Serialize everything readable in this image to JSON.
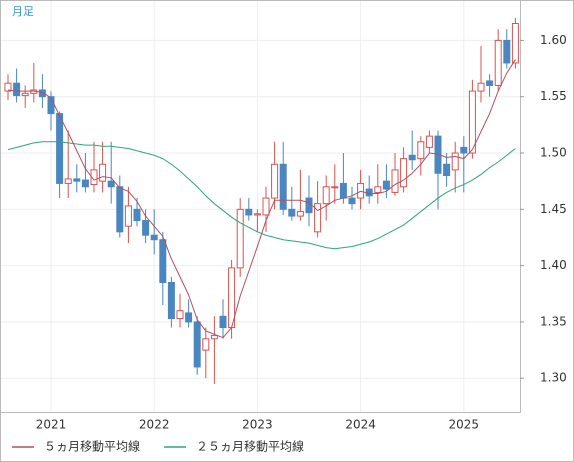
{
  "chart_data": {
    "type": "candlestick",
    "label": "月足",
    "categories": [
      null,
      null,
      null,
      null,
      null,
      "2021",
      null,
      null,
      null,
      null,
      null,
      null,
      null,
      null,
      null,
      null,
      null,
      "2022",
      null,
      null,
      null,
      null,
      null,
      null,
      null,
      null,
      null,
      null,
      null,
      "2023",
      null,
      null,
      null,
      null,
      null,
      null,
      null,
      null,
      null,
      null,
      null,
      "2024",
      null,
      null,
      null,
      null,
      null,
      null,
      null,
      null,
      null,
      null,
      null,
      "2025",
      null,
      null,
      null,
      null,
      null,
      null
    ],
    "open": [
      1.555,
      1.562,
      1.551,
      1.553,
      1.556,
      1.55,
      1.535,
      1.473,
      1.477,
      1.476,
      1.472,
      1.475,
      1.475,
      1.47,
      1.435,
      1.45,
      1.44,
      1.427,
      1.423,
      1.385,
      1.353,
      1.358,
      1.35,
      1.325,
      1.335,
      1.355,
      1.345,
      1.398,
      1.45,
      1.445,
      1.445,
      1.46,
      1.49,
      1.45,
      1.444,
      1.46,
      1.43,
      1.455,
      1.47,
      1.473,
      1.46,
      1.46,
      1.468,
      1.465,
      1.475,
      1.465,
      1.47,
      1.498,
      1.495,
      1.505,
      1.515,
      1.49,
      1.485,
      1.505,
      1.5,
      1.555,
      1.564,
      1.56,
      1.6,
      1.58
    ],
    "high": [
      1.57,
      1.575,
      1.56,
      1.58,
      1.57,
      1.555,
      1.537,
      1.52,
      1.49,
      1.5,
      1.51,
      1.51,
      1.51,
      1.48,
      1.47,
      1.46,
      1.45,
      1.45,
      1.43,
      1.39,
      1.375,
      1.37,
      1.355,
      1.345,
      1.355,
      1.37,
      1.405,
      1.46,
      1.46,
      1.45,
      1.47,
      1.51,
      1.51,
      1.47,
      1.485,
      1.48,
      1.475,
      1.48,
      1.49,
      1.5,
      1.47,
      1.485,
      1.48,
      1.49,
      1.49,
      1.5,
      1.505,
      1.52,
      1.515,
      1.52,
      1.52,
      1.5,
      1.51,
      1.515,
      1.565,
      1.595,
      1.57,
      1.61,
      1.61,
      1.62
    ],
    "low": [
      1.547,
      1.545,
      1.54,
      1.545,
      1.54,
      1.52,
      1.46,
      1.46,
      1.465,
      1.465,
      1.465,
      1.465,
      1.455,
      1.425,
      1.42,
      1.435,
      1.42,
      1.41,
      1.365,
      1.345,
      1.345,
      1.345,
      1.303,
      1.3,
      1.295,
      1.335,
      1.335,
      1.39,
      1.44,
      1.43,
      1.43,
      1.45,
      1.445,
      1.44,
      1.44,
      1.435,
      1.425,
      1.44,
      1.455,
      1.455,
      1.45,
      1.45,
      1.455,
      1.455,
      1.46,
      1.462,
      1.465,
      1.485,
      1.48,
      1.5,
      1.45,
      1.47,
      1.465,
      1.465,
      1.495,
      1.545,
      1.55,
      1.555,
      1.575,
      1.575
    ],
    "close": [
      1.562,
      1.551,
      1.553,
      1.556,
      1.55,
      1.535,
      1.473,
      1.477,
      1.475,
      1.47,
      1.485,
      1.49,
      1.47,
      1.43,
      1.453,
      1.44,
      1.427,
      1.423,
      1.385,
      1.353,
      1.36,
      1.35,
      1.31,
      1.335,
      1.338,
      1.345,
      1.398,
      1.45,
      1.445,
      1.446,
      1.46,
      1.49,
      1.45,
      1.444,
      1.448,
      1.447,
      1.455,
      1.47,
      1.47,
      1.46,
      1.455,
      1.473,
      1.462,
      1.47,
      1.468,
      1.485,
      1.495,
      1.494,
      1.51,
      1.515,
      1.482,
      1.48,
      1.5,
      1.5,
      1.555,
      1.562,
      1.56,
      1.6,
      1.58,
      1.615
    ],
    "up_color": "#d9534f",
    "down_color": "#4a86c0",
    "series": [
      {
        "name": "５ヵ月移動平均線",
        "color": "#b05060",
        "values": [
          1.556,
          1.555,
          1.555,
          1.555,
          1.554,
          1.549,
          1.533,
          1.518,
          1.502,
          1.486,
          1.476,
          1.479,
          1.478,
          1.469,
          1.466,
          1.457,
          1.444,
          1.435,
          1.426,
          1.406,
          1.39,
          1.374,
          1.352,
          1.342,
          1.339,
          1.336,
          1.345,
          1.373,
          1.395,
          1.417,
          1.44,
          1.458,
          1.458,
          1.458,
          1.458,
          1.456,
          1.449,
          1.453,
          1.458,
          1.46,
          1.462,
          1.466,
          1.464,
          1.464,
          1.466,
          1.472,
          1.476,
          1.482,
          1.49,
          1.5,
          1.499,
          1.496,
          1.497,
          1.495,
          1.503,
          1.519,
          1.535,
          1.555,
          1.571,
          1.583
        ]
      },
      {
        "name": "２５ヵ月移動平均線",
        "color": "#2aa878",
        "values": [
          1.503,
          1.505,
          1.507,
          1.509,
          1.51,
          1.51,
          1.51,
          1.509,
          1.508,
          1.507,
          1.507,
          1.506,
          1.506,
          1.505,
          1.504,
          1.502,
          1.5,
          1.498,
          1.495,
          1.49,
          1.484,
          1.477,
          1.47,
          1.462,
          1.455,
          1.449,
          1.443,
          1.438,
          1.434,
          1.43,
          1.427,
          1.425,
          1.423,
          1.422,
          1.421,
          1.42,
          1.418,
          1.416,
          1.415,
          1.416,
          1.417,
          1.419,
          1.421,
          1.424,
          1.428,
          1.432,
          1.436,
          1.442,
          1.448,
          1.454,
          1.46,
          1.465,
          1.469,
          1.472,
          1.476,
          1.481,
          1.487,
          1.492,
          1.498,
          1.504
        ]
      }
    ],
    "ylim": [
      1.27,
      1.635
    ],
    "yticks": [
      {
        "value": 1.3,
        "label": "1.30"
      },
      {
        "value": 1.35,
        "label": "1.35"
      },
      {
        "value": 1.4,
        "label": "1.40"
      },
      {
        "value": 1.45,
        "label": "1.45"
      },
      {
        "value": 1.5,
        "label": "1.50"
      },
      {
        "value": 1.55,
        "label": "1.55"
      },
      {
        "value": 1.6,
        "label": "1.60"
      }
    ],
    "grid": true
  }
}
